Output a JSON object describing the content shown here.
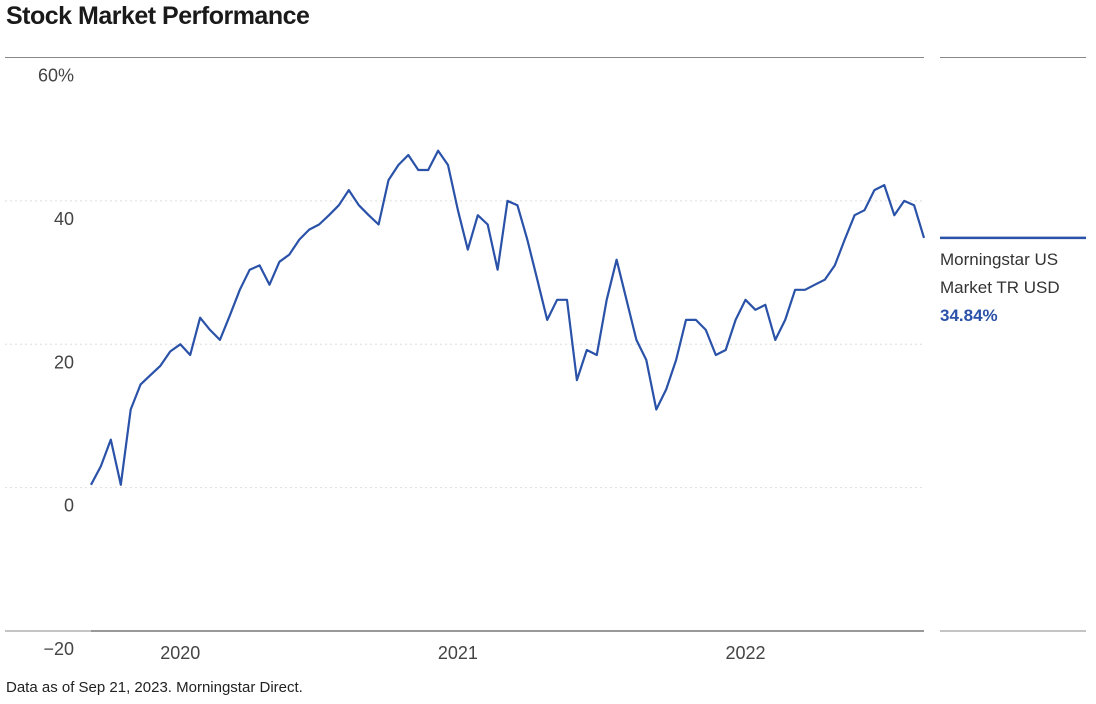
{
  "chart_data": {
    "type": "line",
    "title": "Stock Market Performance",
    "footnote": "Data as of Sep 21, 2023. Morningstar Direct.",
    "categories": [
      null,
      null,
      null,
      null,
      null,
      null,
      null,
      null,
      null,
      "2020",
      null,
      null,
      null,
      null,
      null,
      null,
      null,
      null,
      null,
      null,
      null,
      null,
      null,
      null,
      null,
      null,
      null,
      null,
      null,
      null,
      null,
      null,
      null,
      null,
      null,
      null,
      null,
      "2021",
      null,
      null,
      null,
      null,
      null,
      null,
      null,
      null,
      null,
      null,
      null,
      null,
      null,
      null,
      null,
      null,
      null,
      null,
      null,
      null,
      null,
      null,
      null,
      null,
      null,
      null,
      null,
      null,
      "2022",
      null,
      null,
      null,
      null,
      null,
      null,
      null,
      null,
      null,
      null,
      null,
      null,
      null,
      null,
      null,
      null,
      null,
      null
    ],
    "series": [
      {
        "name": "Morningstar US Market TR USD",
        "color": "#2a52a8",
        "values": [
          0.4,
          3,
          6.7,
          0.4,
          10.9,
          14.4,
          15.7,
          17,
          19,
          20,
          18.5,
          23.7,
          22,
          20.6,
          24,
          27.6,
          30.4,
          31,
          28.3,
          31.5,
          32.5,
          34.6,
          36,
          36.7,
          38,
          39.4,
          41.5,
          39.4,
          38,
          36.7,
          42.9,
          45,
          46.4,
          44.3,
          44.3,
          47,
          45,
          38.7,
          33.2,
          38,
          36.7,
          30.4,
          40,
          39.4,
          34.6,
          29,
          23.4,
          26.2,
          26.2,
          15,
          19.2,
          18.5,
          26.2,
          31.8,
          26.2,
          20.6,
          17.8,
          10.9,
          13.7,
          17.8,
          23.4,
          23.4,
          22,
          18.5,
          19.2,
          23.4,
          26.2,
          24.8,
          25.5,
          20.6,
          23.4,
          27.6,
          27.6,
          28.3,
          29,
          31,
          34.6,
          38,
          38.7,
          41.5,
          42.2,
          38,
          40,
          39.4,
          34.84
        ],
        "value_labels": [
          null,
          null,
          null,
          null,
          null,
          null,
          null,
          null,
          null,
          null,
          null,
          null,
          null,
          null,
          null,
          null,
          null,
          null,
          null,
          null,
          null,
          null,
          null,
          null,
          null,
          null,
          null,
          null,
          null,
          null,
          null,
          null,
          null,
          null,
          null,
          null,
          null,
          null,
          null,
          null,
          null,
          null,
          null,
          null,
          null,
          null,
          null,
          null,
          null,
          null,
          null,
          null,
          null,
          null,
          null,
          null,
          null,
          null,
          null,
          null,
          null,
          null,
          null,
          null,
          null,
          null,
          null,
          null,
          null,
          null,
          null,
          null,
          null,
          null,
          null,
          null,
          null,
          null,
          null,
          null,
          null,
          null,
          null,
          null,
          "34.84%"
        ]
      }
    ],
    "ylim": [
      -20,
      60
    ],
    "yticks": [
      {
        "value": 60,
        "label": "60%"
      },
      40,
      20,
      0,
      {
        "value": -20,
        "label": "−20"
      }
    ],
    "grid": true
  }
}
